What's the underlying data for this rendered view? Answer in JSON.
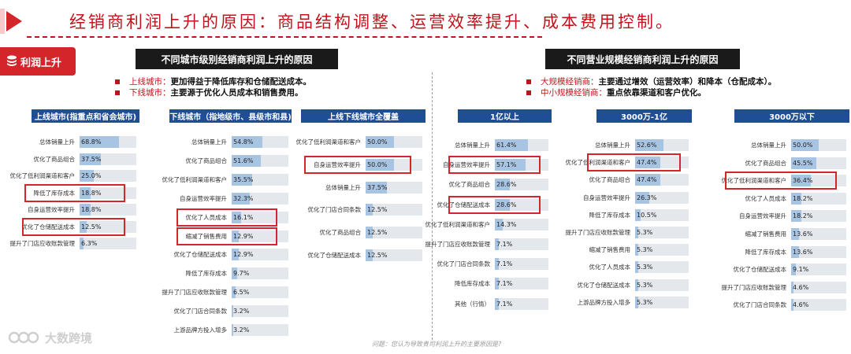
{
  "title": "经销商利润上升的原因：商品结构调整、运营效率提升、成本费用控制。",
  "badge": "利润上升",
  "left_header": "不同城市级别经销商利润上升的原因",
  "right_header": "不同营业规模经销商利润上升的原因",
  "left_notes": [
    {
      "label": "上线城市：",
      "text": "更加得益于降低库存和仓储配送成本。"
    },
    {
      "label": "下线城市：",
      "text": "主要源于优化人员成本和销售费用。"
    }
  ],
  "right_notes": [
    {
      "label": "大规模经销商：",
      "text": "主要通过增效（运营效率）和降本（仓配成本）。"
    },
    {
      "label": "中小规模经销商：",
      "text": "重点依靠渠道和客户优化。"
    }
  ],
  "question": "问题：您认为导致贵司利润上升的主要原因是?",
  "watermark": "大数跨境",
  "colors": {
    "accent": "#d4252a",
    "panel_head": "#1f4e94",
    "bar": "#a8c4e3",
    "track": "#e4e7ec"
  },
  "chart_data": [
    {
      "type": "bar",
      "title": "上线城市(指重点和省会城市)",
      "categories": [
        "总体销量上升",
        "优化了商品组合",
        "优化了低利润渠道和客户",
        "降低了库存成本",
        "自身运营效率提升",
        "优化了仓储配送成本",
        "提升了门店应收账款管理"
      ],
      "values": [
        68.8,
        37.5,
        25.0,
        18.8,
        18.8,
        12.5,
        6.3
      ],
      "highlighted": [
        "降低了库存成本",
        "优化了仓储配送成本"
      ]
    },
    {
      "type": "bar",
      "title": "下线城市（指地级市、县级市和县)",
      "categories": [
        "总体销量上升",
        "优化了商品组合",
        "优化了低利润渠道和客户",
        "自身运营效率提升",
        "优化了人员成本",
        "缩减了销售费用",
        "优化了仓储配送成本",
        "降低了库存成本",
        "提升了门店应收账款管理",
        "优化了门店合同条款",
        "上游品牌方投入增多"
      ],
      "values": [
        54.8,
        51.6,
        35.5,
        32.3,
        16.1,
        12.9,
        12.9,
        9.7,
        6.5,
        3.2,
        3.2
      ],
      "highlighted": [
        "优化了人员成本",
        "缩减了销售费用"
      ]
    },
    {
      "type": "bar",
      "title": "上线下线城市全覆盖",
      "categories": [
        "优化了低利润渠道和客户",
        "自身运营效率提升",
        "总体销量上升",
        "优化了门店合同条款",
        "优化了商品组合",
        "优化了仓储配送成本"
      ],
      "values": [
        50.0,
        50.0,
        37.5,
        12.5,
        12.5,
        12.5
      ],
      "highlighted": [
        "自身运营效率提升"
      ]
    },
    {
      "type": "bar",
      "title": "1亿以上",
      "categories": [
        "总体销量上升",
        "自身运营效率提升",
        "优化了商品组合",
        "优化了仓储配送成本",
        "优化了低利润渠道和客户",
        "提升了门店应收账款管理",
        "优化了门店合同条款",
        "降低库存成本",
        "其他（行情）"
      ],
      "values": [
        61.4,
        57.1,
        28.6,
        28.6,
        14.3,
        7.1,
        7.1,
        7.1,
        7.1
      ],
      "highlighted": [
        "自身运营效率提升",
        "优化了仓储配送成本"
      ]
    },
    {
      "type": "bar",
      "title": "3000万-1亿",
      "categories": [
        "总体销量上升",
        "优化了低利润渠道和客户",
        "优化了商品组合",
        "自身运营效率提升",
        "降低了库存成本",
        "提升了门店应收账款管理",
        "缩减了销售费用",
        "优化了人员成本",
        "优化了仓储配送成本",
        "上游品牌方投入增多"
      ],
      "values": [
        52.6,
        47.4,
        47.4,
        26.3,
        10.5,
        5.3,
        5.3,
        5.3,
        5.3,
        5.3
      ],
      "highlighted": [
        "优化了低利润渠道和客户"
      ]
    },
    {
      "type": "bar",
      "title": "3000万以下",
      "categories": [
        "总体销量上升",
        "优化了商品组合",
        "优化了低利润渠道和客户",
        "优化了人员成本",
        "自身运营效率提升",
        "缩减了销售费用",
        "降低了库存成本",
        "优化了仓储配送成本",
        "提升了门店应收账款管理",
        "优化了门店合同条款"
      ],
      "values": [
        50.0,
        45.5,
        36.4,
        18.2,
        18.2,
        13.6,
        13.6,
        9.1,
        4.6,
        4.6
      ],
      "highlighted": [
        "优化了低利润渠道和客户"
      ]
    }
  ]
}
